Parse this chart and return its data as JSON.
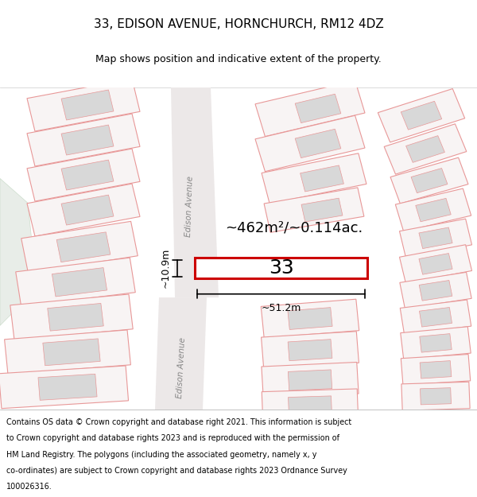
{
  "title_line1": "33, EDISON AVENUE, HORNCHURCH, RM12 4DZ",
  "title_line2": "Map shows position and indicative extent of the property.",
  "footer_lines": [
    "Contains OS data © Crown copyright and database right 2021. This information is subject",
    "to Crown copyright and database rights 2023 and is reproduced with the permission of",
    "HM Land Registry. The polygons (including the associated geometry, namely x, y",
    "co-ordinates) are subject to Crown copyright and database rights 2023 Ordnance Survey",
    "100026316."
  ],
  "map_bg": "#f5f0f0",
  "plot_fill": "#f8f4f4",
  "plot_edge": "#e89898",
  "building_fill": "#d8d8d8",
  "road_fill": "#ece8e8",
  "prop_fill": "#ffffff",
  "prop_edge": "#cc0000",
  "dim_color": "#000000",
  "area_label": "~462m²/~0.114ac.",
  "width_label": "~51.2m",
  "height_label": "~10.9m",
  "number_label": "33",
  "street_label": "Edison Avenue",
  "green_fill": "#e8ede8",
  "green_edge": "#ccddcc"
}
